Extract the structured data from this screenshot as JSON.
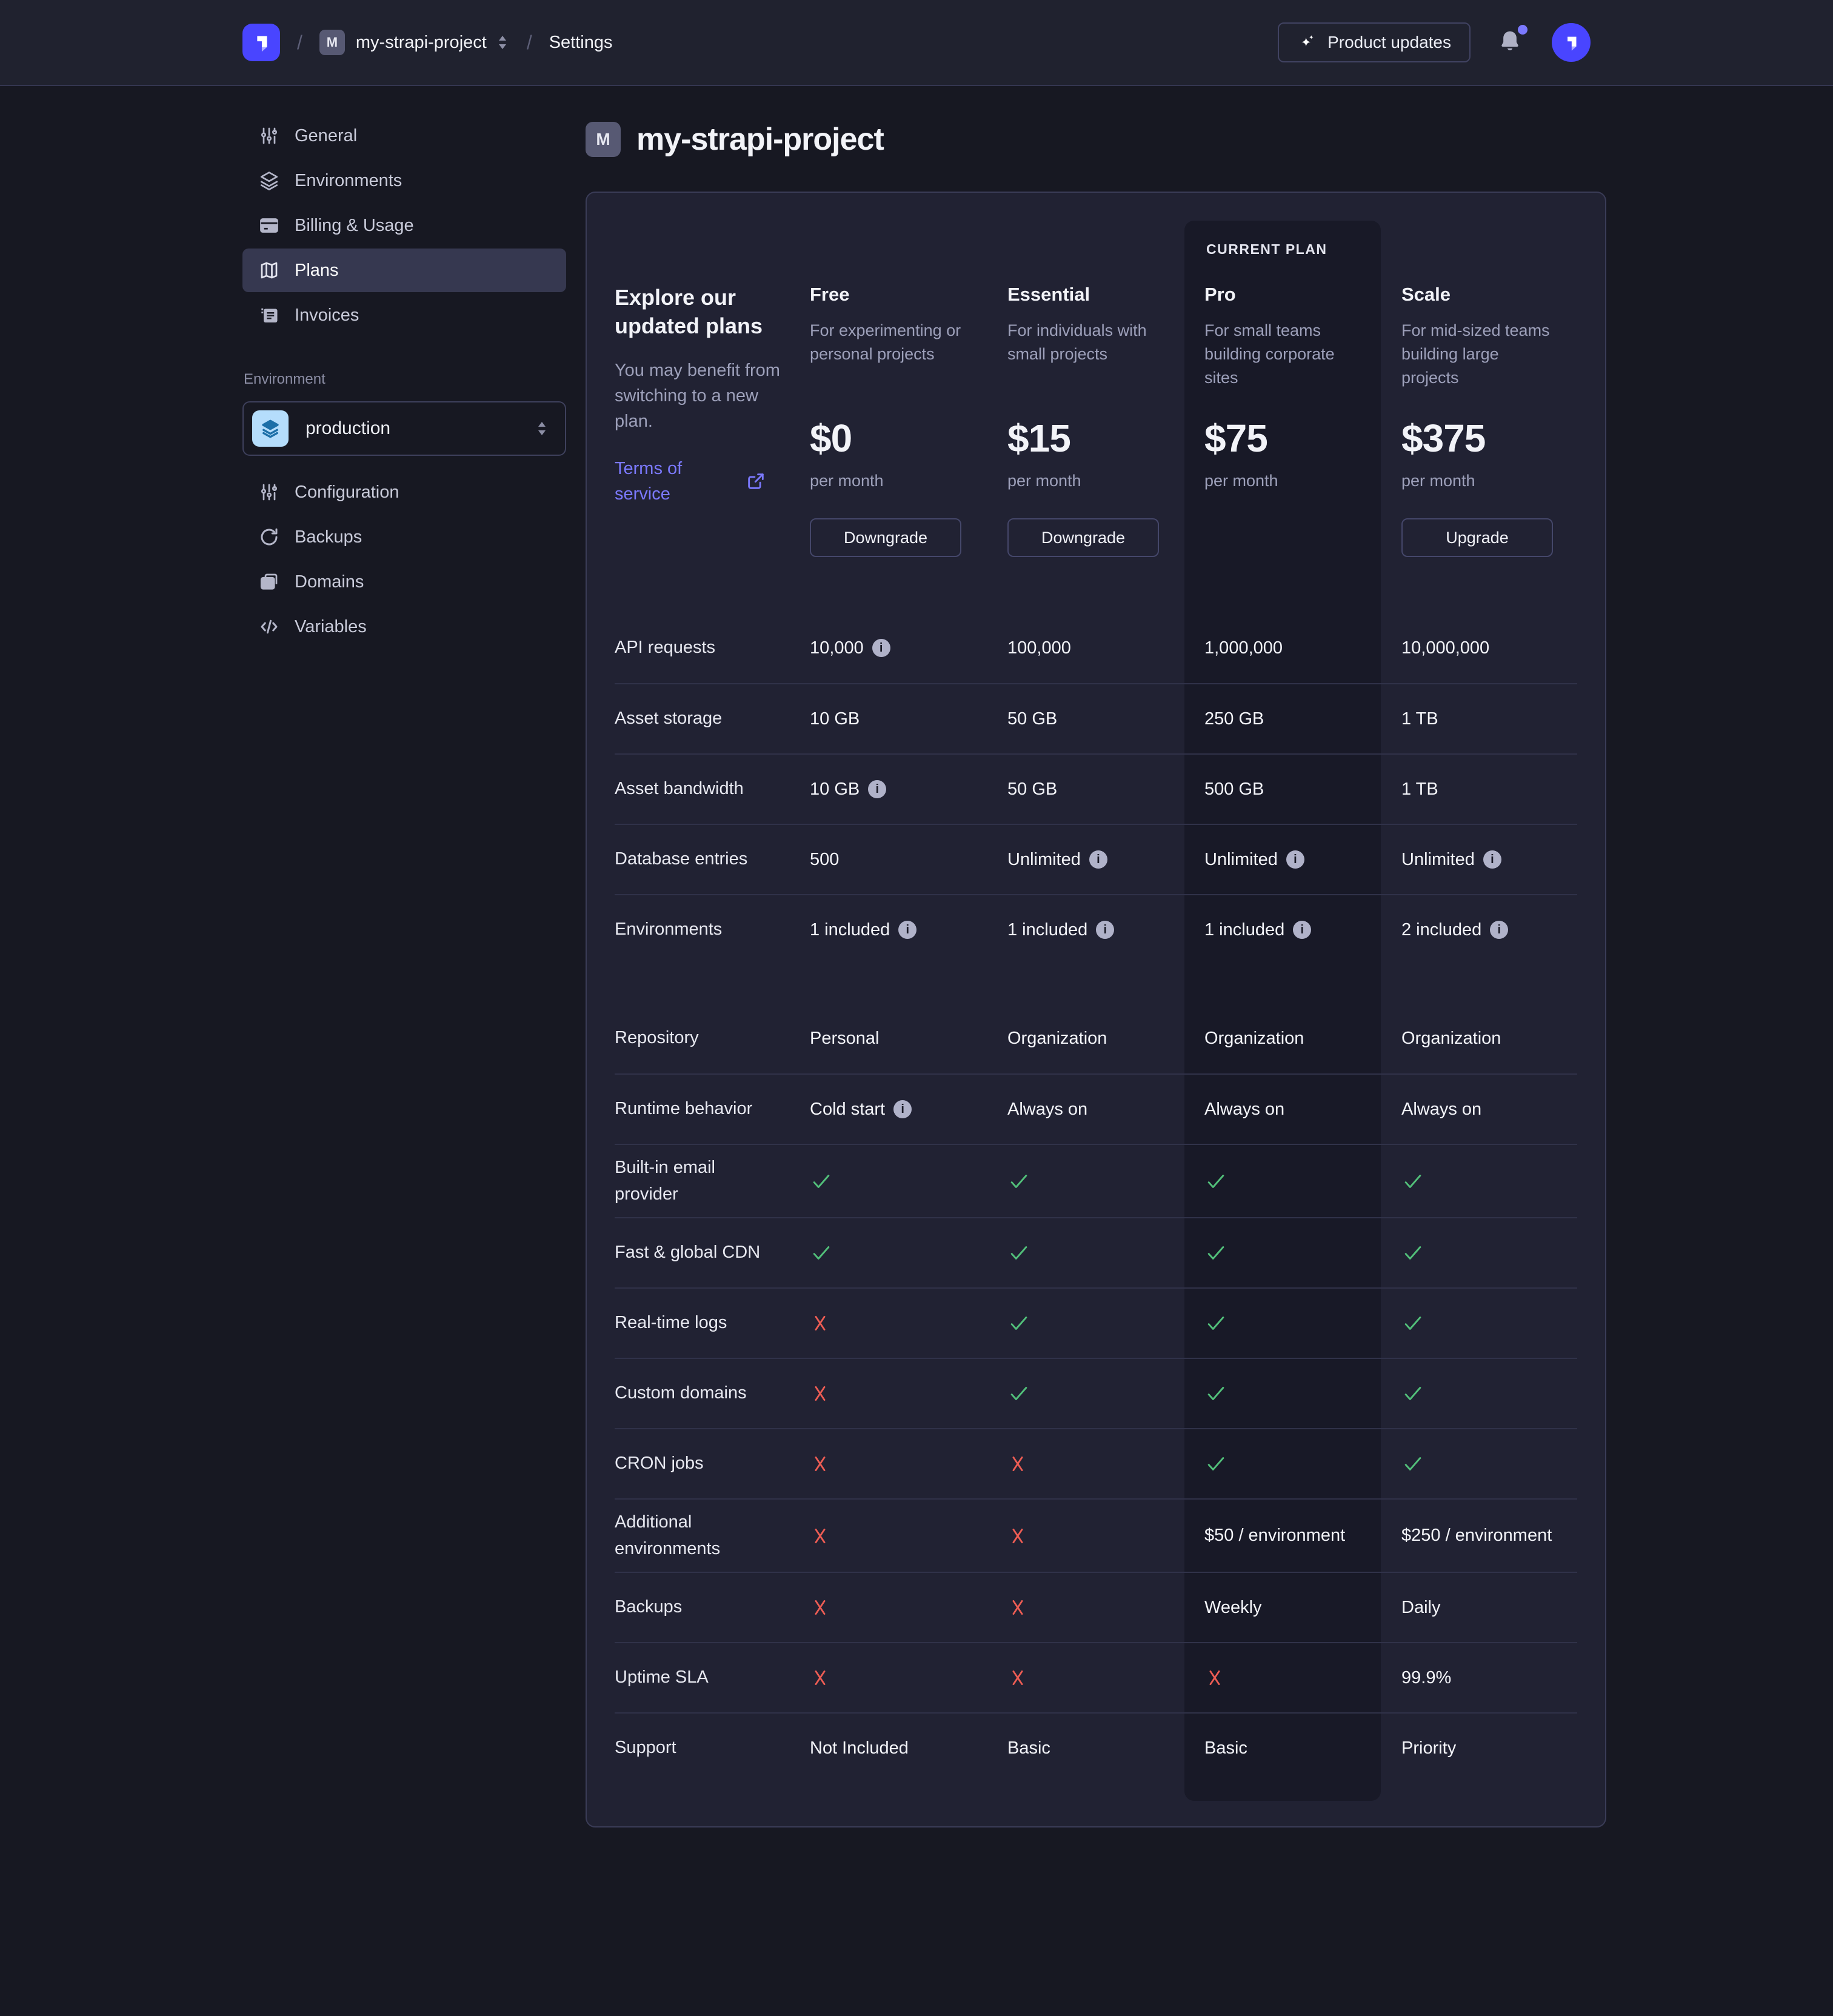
{
  "topbar": {
    "breadcrumb": {
      "slash": "/",
      "project_initial": "M",
      "project": "my-strapi-project",
      "section": "Settings"
    },
    "product_updates_label": "Product updates"
  },
  "sidebar": {
    "nav": [
      {
        "label": "General",
        "icon": "sliders-icon",
        "selected": false
      },
      {
        "label": "Environments",
        "icon": "layers-icon",
        "selected": false
      },
      {
        "label": "Billing & Usage",
        "icon": "credit-card-icon",
        "selected": false
      },
      {
        "label": "Plans",
        "icon": "map-icon",
        "selected": true
      },
      {
        "label": "Invoices",
        "icon": "invoice-icon",
        "selected": false
      }
    ],
    "environment_label": "Environment",
    "environment_select": {
      "value": "production",
      "icon": "layers-icon"
    },
    "env_nav": [
      {
        "label": "Configuration",
        "icon": "sliders-icon",
        "selected": false
      },
      {
        "label": "Backups",
        "icon": "refresh-icon",
        "selected": false
      },
      {
        "label": "Domains",
        "icon": "folder-copy-icon",
        "selected": false
      },
      {
        "label": "Variables",
        "icon": "code-icon",
        "selected": false
      }
    ]
  },
  "page": {
    "project_initial": "M",
    "title": "my-strapi-project"
  },
  "plans_card": {
    "heading": "Explore our updated plans",
    "subtext": "You may benefit from switching to a new plan.",
    "terms_label": "Terms of service",
    "current_plan_label": "CURRENT PLAN",
    "plans": [
      {
        "name": "Free",
        "desc": "For experimenting or personal projects",
        "price": "$0",
        "period": "per month",
        "action": "Downgrade",
        "current": false
      },
      {
        "name": "Essential",
        "desc": "For individuals with small projects",
        "price": "$15",
        "period": "per month",
        "action": "Downgrade",
        "current": false
      },
      {
        "name": "Pro",
        "desc": "For small teams building corporate sites",
        "price": "$75",
        "period": "per month",
        "action": null,
        "current": true
      },
      {
        "name": "Scale",
        "desc": "For mid-sized teams building large projects",
        "price": "$375",
        "period": "per month",
        "action": "Upgrade",
        "current": false
      }
    ],
    "feature_groups": [
      {
        "rows": [
          {
            "label": "API requests",
            "cells": [
              {
                "text": "10,000",
                "info": true
              },
              {
                "text": "100,000"
              },
              {
                "text": "1,000,000"
              },
              {
                "text": "10,000,000"
              }
            ]
          },
          {
            "label": "Asset storage",
            "cells": [
              {
                "text": "10 GB"
              },
              {
                "text": "50 GB"
              },
              {
                "text": "250 GB"
              },
              {
                "text": "1 TB"
              }
            ]
          },
          {
            "label": "Asset bandwidth",
            "cells": [
              {
                "text": "10 GB",
                "info": true
              },
              {
                "text": "50 GB"
              },
              {
                "text": "500 GB"
              },
              {
                "text": "1 TB"
              }
            ]
          },
          {
            "label": "Database entries",
            "cells": [
              {
                "text": "500"
              },
              {
                "text": "Unlimited",
                "info": true
              },
              {
                "text": "Unlimited",
                "info": true
              },
              {
                "text": "Unlimited",
                "info": true
              }
            ]
          },
          {
            "label": "Environments",
            "cells": [
              {
                "text": "1 included",
                "info": true
              },
              {
                "text": "1 included",
                "info": true
              },
              {
                "text": "1 included",
                "info": true
              },
              {
                "text": "2 included",
                "info": true
              }
            ]
          }
        ]
      },
      {
        "rows": [
          {
            "label": "Repository",
            "cells": [
              {
                "text": "Personal"
              },
              {
                "text": "Organization"
              },
              {
                "text": "Organization"
              },
              {
                "text": "Organization"
              }
            ]
          },
          {
            "label": "Runtime behavior",
            "cells": [
              {
                "text": "Cold start",
                "info": true
              },
              {
                "text": "Always on"
              },
              {
                "text": "Always on"
              },
              {
                "text": "Always on"
              }
            ]
          },
          {
            "label": "Built-in email provider",
            "cells": [
              {
                "mark": "check"
              },
              {
                "mark": "check"
              },
              {
                "mark": "check"
              },
              {
                "mark": "check"
              }
            ]
          },
          {
            "label": "Fast & global CDN",
            "cells": [
              {
                "mark": "check"
              },
              {
                "mark": "check"
              },
              {
                "mark": "check"
              },
              {
                "mark": "check"
              }
            ]
          },
          {
            "label": "Real-time logs",
            "cells": [
              {
                "mark": "cross"
              },
              {
                "mark": "check"
              },
              {
                "mark": "check"
              },
              {
                "mark": "check"
              }
            ]
          },
          {
            "label": "Custom domains",
            "cells": [
              {
                "mark": "cross"
              },
              {
                "mark": "check"
              },
              {
                "mark": "check"
              },
              {
                "mark": "check"
              }
            ]
          },
          {
            "label": "CRON jobs",
            "cells": [
              {
                "mark": "cross"
              },
              {
                "mark": "cross"
              },
              {
                "mark": "check"
              },
              {
                "mark": "check"
              }
            ]
          },
          {
            "label": "Additional environments",
            "cells": [
              {
                "mark": "cross"
              },
              {
                "mark": "cross"
              },
              {
                "text": "$50 / environment"
              },
              {
                "text": "$250 / environment"
              }
            ]
          },
          {
            "label": "Backups",
            "cells": [
              {
                "mark": "cross"
              },
              {
                "mark": "cross"
              },
              {
                "text": "Weekly"
              },
              {
                "text": "Daily"
              }
            ]
          },
          {
            "label": "Uptime SLA",
            "cells": [
              {
                "mark": "cross"
              },
              {
                "mark": "cross"
              },
              {
                "mark": "cross"
              },
              {
                "text": "99.9%"
              }
            ]
          },
          {
            "label": "Support",
            "cells": [
              {
                "text": "Not Included"
              },
              {
                "text": "Basic"
              },
              {
                "text": "Basic"
              },
              {
                "text": "Priority"
              }
            ]
          }
        ]
      }
    ]
  },
  "colors": {
    "brand_purple": "#4945ff",
    "link_purple": "#7b79ff",
    "check_green": "#52c07a",
    "cross_red": "#ee5d54",
    "env_tile_bg": "#b5ddfc",
    "env_tile_icon": "#1d6fa8",
    "notification_dot": "#7b79ff",
    "current_column_bg": "#181927"
  }
}
